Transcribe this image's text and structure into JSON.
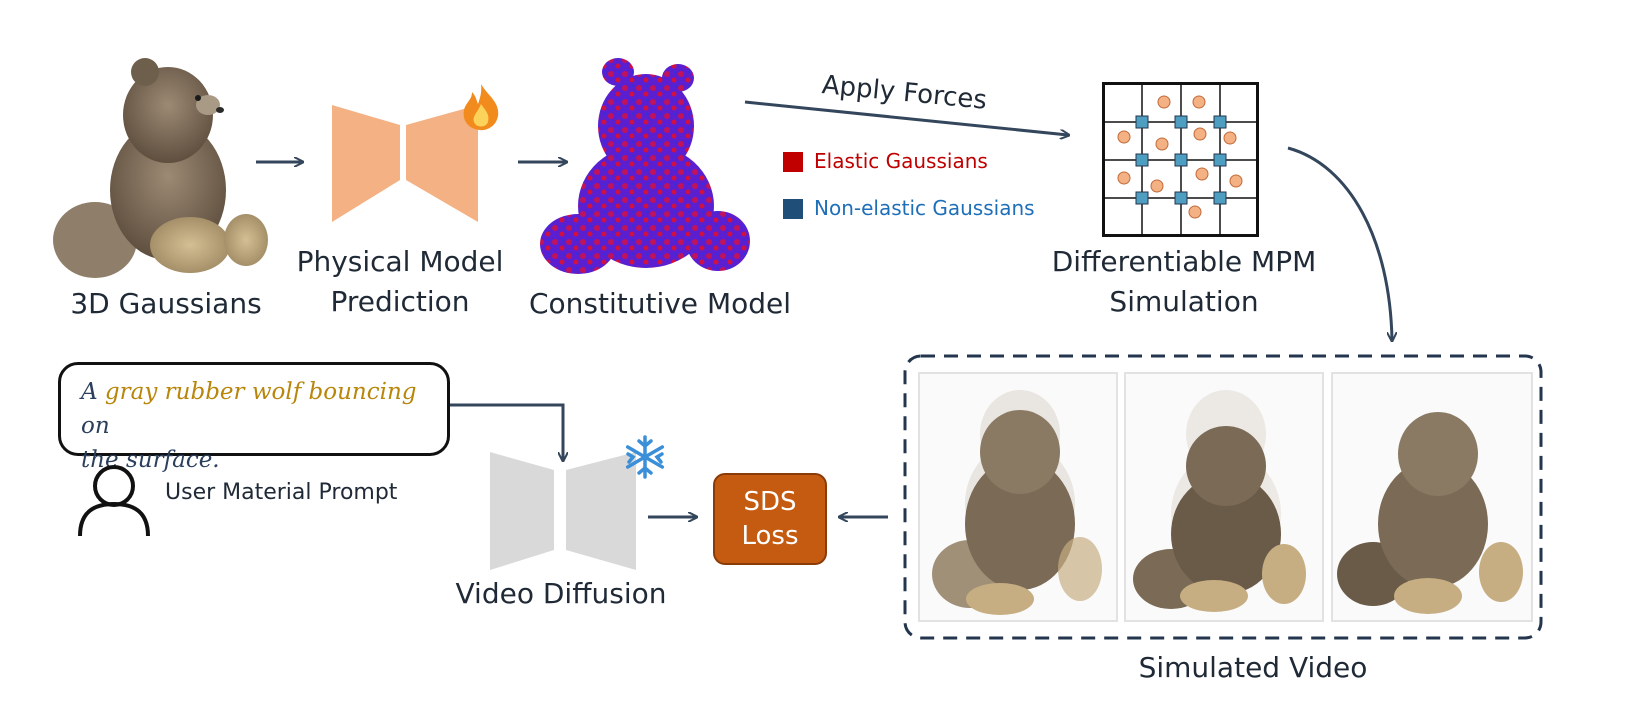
{
  "labels": {
    "gaussians": "3D Gaussians",
    "physical_model_line1": "Physical Model",
    "physical_model_line2": "Prediction",
    "constitutive": "Constitutive Model",
    "apply_forces": "Apply Forces",
    "mpm_line1": "Differentiable MPM",
    "mpm_line2": "Simulation",
    "video_diffusion": "Video Diffusion",
    "simulated_video": "Simulated Video",
    "user_prompt": "User Material Prompt"
  },
  "legend": {
    "elastic": "Elastic Gaussians",
    "non_elastic": "Non-elastic Gaussians"
  },
  "prompt": {
    "part1": "A ",
    "highlight": "gray rubber wolf bouncing",
    "part2": " on",
    "part3": "the surface."
  },
  "sds": {
    "line1": "SDS",
    "line2": "Loss"
  },
  "colors": {
    "arrow": "#34465c",
    "elastic": "#c00000",
    "non_elastic": "#1f4e79",
    "network_trainable": "#f4b183",
    "network_frozen": "#d9d9d9",
    "sds_fill": "#c55a11",
    "prompt_highlight": "#b8860b",
    "particle": "#f4b183",
    "node": "#4e9ec2"
  },
  "icons": {
    "trainable": "fire-icon",
    "frozen": "snowflake-icon",
    "user": "user-icon"
  }
}
